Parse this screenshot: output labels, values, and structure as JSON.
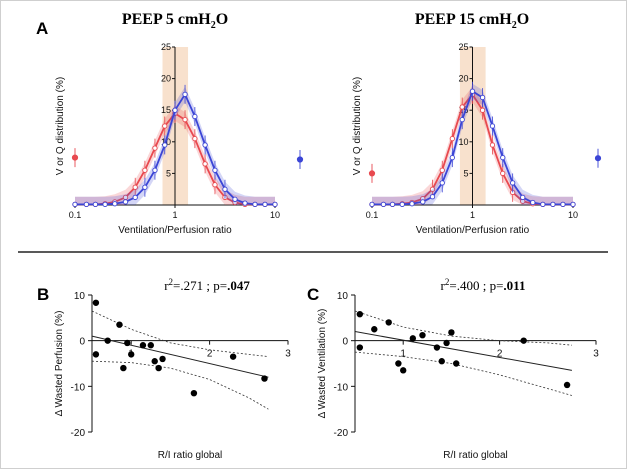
{
  "chart_data": [
    {
      "panel": "A",
      "type": "line",
      "title": "PEEP 5 cmH",
      "title_sub": "2",
      "title_end": "O",
      "xlabel": "Ventilation/Perfusion ratio",
      "ylabel": "V or Q distribution (%)",
      "xscale": "log",
      "xlim": [
        0.1,
        10
      ],
      "ylim": [
        0,
        25
      ],
      "xticks": [
        "0.1",
        "1",
        "10"
      ],
      "yticks": [
        0,
        5,
        10,
        15,
        20,
        25
      ],
      "shaded_band": [
        0.75,
        1.35
      ],
      "shade_color": "#f7dcc4",
      "series": [
        {
          "color": "#e8494f",
          "x": [
            0.1,
            0.13,
            0.16,
            0.2,
            0.25,
            0.32,
            0.4,
            0.5,
            0.63,
            0.79,
            1.0,
            1.26,
            1.58,
            2.0,
            2.51,
            3.16,
            3.98,
            5.01,
            6.31,
            7.94,
            10
          ],
          "values": [
            0.1,
            0.1,
            0.1,
            0.2,
            0.5,
            1.2,
            2.8,
            5.5,
            9.0,
            12.5,
            14.5,
            13.5,
            10.5,
            6.5,
            3.2,
            1.2,
            0.4,
            0.1,
            0.1,
            0.1,
            0.1
          ],
          "outside_point": {
            "x": 0.08,
            "y": 7.5
          }
        },
        {
          "color": "#3b45d6",
          "x": [
            0.1,
            0.13,
            0.16,
            0.2,
            0.25,
            0.32,
            0.4,
            0.5,
            0.63,
            0.79,
            1.0,
            1.26,
            1.58,
            2.0,
            2.51,
            3.16,
            3.98,
            5.01,
            6.31,
            7.94,
            10
          ],
          "values": [
            0.1,
            0.1,
            0.1,
            0.1,
            0.2,
            0.5,
            1.2,
            2.8,
            5.5,
            9.5,
            15.0,
            17.5,
            14.0,
            9.5,
            5.5,
            2.5,
            0.9,
            0.3,
            0.1,
            0.1,
            0.1
          ],
          "outside_point": {
            "x": 12.5,
            "y": 7.2
          }
        }
      ]
    },
    {
      "panel": "",
      "type": "line",
      "title": "PEEP 15 cmH",
      "title_sub": "2",
      "title_end": "O",
      "xlabel": "Ventilation/Perfusion ratio",
      "ylabel": "V or Q distribution (%)",
      "xscale": "log",
      "xlim": [
        0.1,
        10
      ],
      "ylim": [
        0,
        25
      ],
      "xticks": [
        "0.1",
        "1",
        "10"
      ],
      "yticks": [
        0,
        5,
        10,
        15,
        20,
        25
      ],
      "shaded_band": [
        0.75,
        1.35
      ],
      "shade_color": "#f7dcc4",
      "series": [
        {
          "color": "#e8494f",
          "x": [
            0.1,
            0.13,
            0.16,
            0.2,
            0.25,
            0.32,
            0.4,
            0.5,
            0.63,
            0.79,
            1.0,
            1.26,
            1.58,
            2.0,
            2.51,
            3.16,
            3.98,
            5.01,
            6.31,
            7.94,
            10
          ],
          "values": [
            0.1,
            0.1,
            0.1,
            0.2,
            0.4,
            1.0,
            2.5,
            5.5,
            10.5,
            15.5,
            17.5,
            15.0,
            9.5,
            5.0,
            2.0,
            0.6,
            0.2,
            0.1,
            0.1,
            0.1,
            0.1
          ],
          "outside_point": {
            "x": 0.08,
            "y": 5.0
          }
        },
        {
          "color": "#3b45d6",
          "x": [
            0.1,
            0.13,
            0.16,
            0.2,
            0.25,
            0.32,
            0.4,
            0.5,
            0.63,
            0.79,
            1.0,
            1.26,
            1.58,
            2.0,
            2.51,
            3.16,
            3.98,
            5.01,
            6.31,
            7.94,
            10
          ],
          "values": [
            0.1,
            0.1,
            0.1,
            0.1,
            0.2,
            0.5,
            1.3,
            3.5,
            7.5,
            13.5,
            18.0,
            17.0,
            12.5,
            7.5,
            3.5,
            1.2,
            0.4,
            0.1,
            0.1,
            0.1,
            0.1
          ],
          "outside_point": {
            "x": 12.5,
            "y": 7.4
          }
        }
      ]
    },
    {
      "panel": "B",
      "type": "scatter",
      "annotation_pre": "r",
      "annotation_sup": "2",
      "annotation_mid": "=.271 ; p=",
      "annotation_bold": ".047",
      "xlabel": "R/I ratio global",
      "ylabel": "Δ Wasted Perfusion (%)",
      "xlim": [
        0.5,
        3
      ],
      "ylim": [
        -20,
        10
      ],
      "xticks": [
        1,
        2,
        3
      ],
      "yticks": [
        -20,
        -10,
        0,
        10
      ],
      "points": [
        {
          "x": 0.55,
          "y": 8.3
        },
        {
          "x": 0.55,
          "y": -3.0
        },
        {
          "x": 0.7,
          "y": 0.0
        },
        {
          "x": 0.85,
          "y": 3.5
        },
        {
          "x": 0.9,
          "y": -6.0
        },
        {
          "x": 0.95,
          "y": -0.5
        },
        {
          "x": 1.0,
          "y": -3.0
        },
        {
          "x": 1.15,
          "y": -1.0
        },
        {
          "x": 1.25,
          "y": -1.0
        },
        {
          "x": 1.3,
          "y": -4.5
        },
        {
          "x": 1.35,
          "y": -6.0
        },
        {
          "x": 1.4,
          "y": -4.0
        },
        {
          "x": 1.8,
          "y": -11.5
        },
        {
          "x": 2.3,
          "y": -3.5
        },
        {
          "x": 2.7,
          "y": -8.3
        }
      ],
      "fit": {
        "x": [
          0.5,
          2.75
        ],
        "y": [
          1.0,
          -8.0
        ]
      },
      "ci_upper": {
        "x": [
          0.5,
          1.0,
          1.5,
          2.0,
          2.5,
          2.75
        ],
        "y": [
          6.5,
          2.5,
          -0.5,
          -2.0,
          -3.0,
          -3.5
        ]
      },
      "ci_lower": {
        "x": [
          0.5,
          1.0,
          1.5,
          2.0,
          2.5,
          2.75
        ],
        "y": [
          -4.5,
          -4.8,
          -6.0,
          -8.5,
          -12.5,
          -15.0
        ]
      }
    },
    {
      "panel": "C",
      "type": "scatter",
      "annotation_pre": "r",
      "annotation_sup": "2",
      "annotation_mid": "=.400 ; p=",
      "annotation_bold": ".011",
      "xlabel": "R/I ratio global",
      "ylabel": "Δ Wasted Ventilation (%)",
      "xlim": [
        0.5,
        3
      ],
      "ylim": [
        -20,
        10
      ],
      "xticks": [
        1,
        2,
        3
      ],
      "yticks": [
        -20,
        -10,
        0,
        10
      ],
      "points": [
        {
          "x": 0.55,
          "y": 5.8
        },
        {
          "x": 0.55,
          "y": -1.5
        },
        {
          "x": 0.7,
          "y": 2.5
        },
        {
          "x": 0.85,
          "y": 4.0
        },
        {
          "x": 0.95,
          "y": -5.0
        },
        {
          "x": 1.0,
          "y": -6.5
        },
        {
          "x": 1.1,
          "y": 0.5
        },
        {
          "x": 1.2,
          "y": 1.2
        },
        {
          "x": 1.35,
          "y": -1.5
        },
        {
          "x": 1.4,
          "y": -4.5
        },
        {
          "x": 1.45,
          "y": -0.5
        },
        {
          "x": 1.5,
          "y": 1.8
        },
        {
          "x": 1.55,
          "y": -5.0
        },
        {
          "x": 2.25,
          "y": 0.0
        },
        {
          "x": 2.7,
          "y": -9.7
        }
      ],
      "fit": {
        "x": [
          0.5,
          2.75
        ],
        "y": [
          2.0,
          -6.5
        ]
      },
      "ci_upper": {
        "x": [
          0.5,
          1.0,
          1.5,
          2.0,
          2.5,
          2.75
        ],
        "y": [
          6.5,
          3.0,
          1.0,
          0.0,
          -0.5,
          -1.0
        ]
      },
      "ci_lower": {
        "x": [
          0.5,
          1.0,
          1.5,
          2.0,
          2.5,
          2.75
        ],
        "y": [
          -2.5,
          -3.5,
          -5.0,
          -7.5,
          -10.5,
          -12.0
        ]
      }
    }
  ]
}
